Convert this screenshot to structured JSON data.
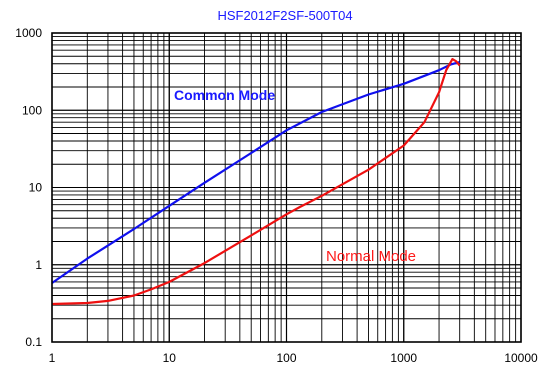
{
  "chart_data": {
    "type": "line",
    "title": "HSF2012F2SF-500T04",
    "xlabel": "",
    "ylabel": "",
    "x_scale": "log",
    "y_scale": "log",
    "xlim": [
      1,
      10000
    ],
    "ylim": [
      0.1,
      1000
    ],
    "grid": true,
    "x_tick_labels": [
      "1",
      "10",
      "100",
      "1000",
      "10000"
    ],
    "y_tick_labels": [
      "0.1",
      "1",
      "10",
      "100",
      "1000"
    ],
    "title_color": "#1a1aff",
    "series": [
      {
        "name": "Common Mode",
        "color": "#1010ee",
        "x": [
          1,
          2,
          5,
          10,
          20,
          50,
          100,
          200,
          500,
          1000,
          2000,
          2500,
          3000
        ],
        "y": [
          0.58,
          1.2,
          2.9,
          5.8,
          11.5,
          28,
          55,
          95,
          160,
          220,
          330,
          390,
          420
        ]
      },
      {
        "name": "Normal Mode",
        "color": "#ee1010",
        "x": [
          1,
          2,
          3,
          5,
          7,
          10,
          20,
          50,
          100,
          130,
          200,
          500,
          1000,
          1500,
          2000,
          2300,
          2600,
          2800,
          3000
        ],
        "y": [
          0.31,
          0.32,
          0.34,
          0.4,
          0.48,
          0.6,
          1.05,
          2.4,
          4.5,
          5.6,
          7.8,
          17,
          35,
          70,
          170,
          330,
          460,
          430,
          380
        ]
      }
    ],
    "annotations": [
      {
        "text": "Common Mode",
        "color": "#1a1aff"
      },
      {
        "text": "Normal Mode",
        "color": "#ff1a1a"
      }
    ]
  }
}
